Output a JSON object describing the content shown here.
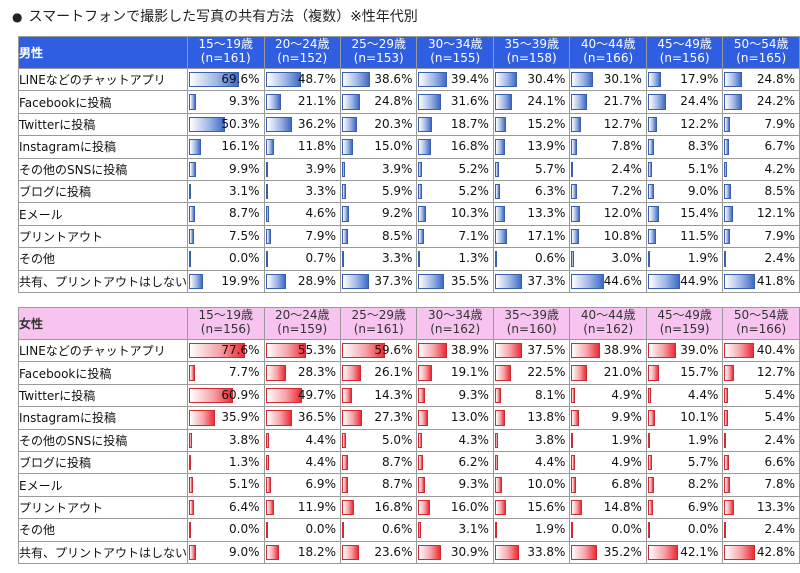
{
  "title": "スマートフォンで撮影した写真の共有方法（複数）※性年代別",
  "colors": {
    "male_header": "#2f5fe0",
    "male_bar": "#3f6bc7",
    "female_header": "#f7c4f0",
    "female_bar": "#ee2b35"
  },
  "chart_data": [
    {
      "type": "table",
      "group": "男性",
      "columns": [
        {
          "age": "15～19歳",
          "n": "(n=161)"
        },
        {
          "age": "20～24歳",
          "n": "(n=152)"
        },
        {
          "age": "25～29歳",
          "n": "(n=153)"
        },
        {
          "age": "30～34歳",
          "n": "(n=155)"
        },
        {
          "age": "35～39歳",
          "n": "(n=158)"
        },
        {
          "age": "40～44歳",
          "n": "(n=166)"
        },
        {
          "age": "45～49歳",
          "n": "(n=156)"
        },
        {
          "age": "50～54歳",
          "n": "(n=165)"
        }
      ],
      "rows": [
        {
          "label": "LINEなどのチャットアプリ",
          "values": [
            69.6,
            48.7,
            38.6,
            39.4,
            30.4,
            30.1,
            17.9,
            24.8
          ]
        },
        {
          "label": "Facebookに投稿",
          "values": [
            9.3,
            21.1,
            24.8,
            31.6,
            24.1,
            21.7,
            24.4,
            24.2
          ]
        },
        {
          "label": "Twitterに投稿",
          "values": [
            50.3,
            36.2,
            20.3,
            18.7,
            15.2,
            12.7,
            12.2,
            7.9
          ]
        },
        {
          "label": "Instagramに投稿",
          "values": [
            16.1,
            11.8,
            15.0,
            16.8,
            13.9,
            7.8,
            8.3,
            6.7
          ]
        },
        {
          "label": "その他のSNSに投稿",
          "values": [
            9.9,
            3.9,
            3.9,
            5.2,
            5.7,
            2.4,
            5.1,
            4.2
          ]
        },
        {
          "label": "ブログに投稿",
          "values": [
            3.1,
            3.3,
            5.9,
            5.2,
            6.3,
            7.2,
            9.0,
            8.5
          ]
        },
        {
          "label": "Eメール",
          "values": [
            8.7,
            4.6,
            9.2,
            10.3,
            13.3,
            12.0,
            15.4,
            12.1
          ]
        },
        {
          "label": "プリントアウト",
          "values": [
            7.5,
            7.9,
            8.5,
            7.1,
            17.1,
            10.8,
            11.5,
            7.9
          ]
        },
        {
          "label": "その他",
          "values": [
            0.0,
            0.7,
            3.3,
            1.3,
            0.6,
            3.0,
            1.9,
            2.4
          ]
        },
        {
          "label": "共有、プリントアウトはしない",
          "values": [
            19.9,
            28.9,
            37.3,
            35.5,
            37.3,
            44.6,
            44.9,
            41.8
          ]
        }
      ]
    },
    {
      "type": "table",
      "group": "女性",
      "columns": [
        {
          "age": "15～19歳",
          "n": "(n=156)"
        },
        {
          "age": "20～24歳",
          "n": "(n=159)"
        },
        {
          "age": "25～29歳",
          "n": "(n=161)"
        },
        {
          "age": "30～34歳",
          "n": "(n=162)"
        },
        {
          "age": "35～39歳",
          "n": "(n=160)"
        },
        {
          "age": "40～44歳",
          "n": "(n=162)"
        },
        {
          "age": "45～49歳",
          "n": "(n=159)"
        },
        {
          "age": "50～54歳",
          "n": "(n=166)"
        }
      ],
      "rows": [
        {
          "label": "LINEなどのチャットアプリ",
          "values": [
            77.6,
            55.3,
            59.6,
            38.9,
            37.5,
            38.9,
            39.0,
            40.4
          ]
        },
        {
          "label": "Facebookに投稿",
          "values": [
            7.7,
            28.3,
            26.1,
            19.1,
            22.5,
            21.0,
            15.7,
            12.7
          ]
        },
        {
          "label": "Twitterに投稿",
          "values": [
            60.9,
            49.7,
            14.3,
            9.3,
            8.1,
            4.9,
            4.4,
            5.4
          ]
        },
        {
          "label": "Instagramに投稿",
          "values": [
            35.9,
            36.5,
            27.3,
            13.0,
            13.8,
            9.9,
            10.1,
            5.4
          ]
        },
        {
          "label": "その他のSNSに投稿",
          "values": [
            3.8,
            4.4,
            5.0,
            4.3,
            3.8,
            1.9,
            1.9,
            2.4
          ]
        },
        {
          "label": "ブログに投稿",
          "values": [
            1.3,
            4.4,
            8.7,
            6.2,
            4.4,
            4.9,
            5.7,
            6.6
          ]
        },
        {
          "label": "Eメール",
          "values": [
            5.1,
            6.9,
            8.7,
            9.3,
            10.0,
            6.8,
            8.2,
            7.8
          ]
        },
        {
          "label": "プリントアウト",
          "values": [
            6.4,
            11.9,
            16.8,
            16.0,
            15.6,
            14.8,
            6.9,
            13.3
          ]
        },
        {
          "label": "その他",
          "values": [
            0.0,
            0.0,
            0.6,
            3.1,
            1.9,
            0.0,
            0.0,
            2.4
          ]
        },
        {
          "label": "共有、プリントアウトはしない",
          "values": [
            9.0,
            18.2,
            23.6,
            30.9,
            33.8,
            35.2,
            42.1,
            42.8
          ]
        }
      ]
    }
  ]
}
